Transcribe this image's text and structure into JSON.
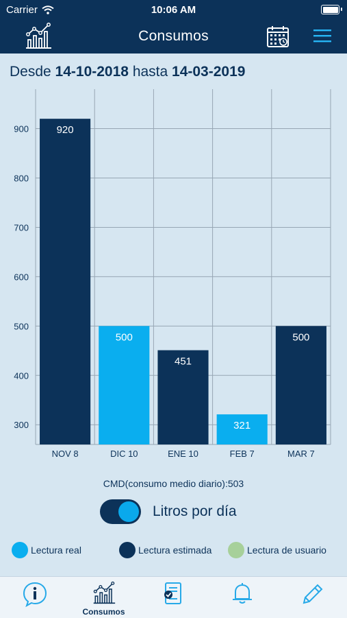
{
  "status_bar": {
    "carrier": "Carrier",
    "time": "10:06 AM"
  },
  "nav": {
    "title": "Consumos",
    "icons": [
      "chart-trend-icon",
      "calendar-icon",
      "hamburger-menu-icon"
    ]
  },
  "date_range": {
    "prefix": "Desde",
    "start": "14-10-2018",
    "middle": "hasta",
    "end": "14-03-2019"
  },
  "chart_data": {
    "type": "bar",
    "categories": [
      "NOV 8",
      "DIC 10",
      "ENE 10",
      "FEB 7",
      "MAR 7"
    ],
    "values": [
      920,
      500,
      451,
      321,
      500
    ],
    "bar_types": [
      "estimada",
      "real",
      "estimada",
      "real",
      "estimada"
    ],
    "value_labels": [
      "920",
      "500",
      "451",
      "321",
      "500"
    ],
    "yticks": [
      300,
      400,
      500,
      600,
      700,
      800,
      900
    ],
    "ylim": [
      260,
      980
    ],
    "grid": true,
    "colors": {
      "real": "#0aaeef",
      "estimada": "#0c3259"
    }
  },
  "cmd_text": "CMD(consumo medio diario):503",
  "toggle": {
    "label": "Litros por día",
    "on": true
  },
  "legend": [
    {
      "label": "Lectura real",
      "color": "#0aaeef"
    },
    {
      "label": "Lectura estimada",
      "color": "#0c3259"
    },
    {
      "label": "Lectura de usuario",
      "color": "#a7d09a"
    }
  ],
  "tabs": [
    {
      "icon": "info-icon",
      "label": ""
    },
    {
      "icon": "chart-trend-icon",
      "label": "Consumos",
      "active": true
    },
    {
      "icon": "checklist-icon",
      "label": ""
    },
    {
      "icon": "bell-icon",
      "label": ""
    },
    {
      "icon": "pencil-icon",
      "label": ""
    }
  ]
}
